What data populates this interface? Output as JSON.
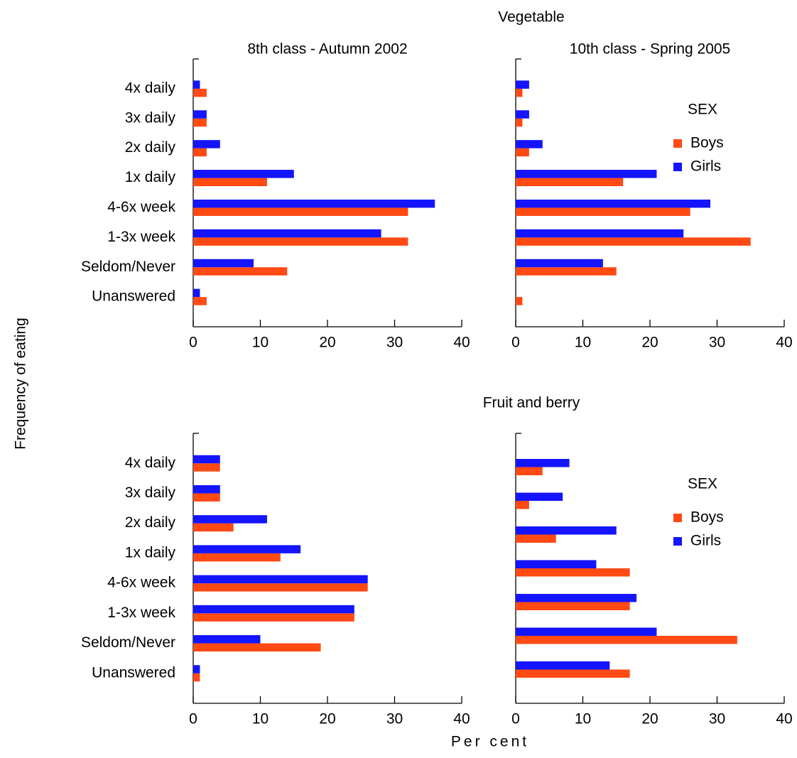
{
  "sections": [
    "Vegetable",
    "Fruit and berry"
  ],
  "ylabel": "Frequency of eating",
  "xlabel": "Per cent",
  "chart_data": [
    {
      "type": "barh",
      "title": "8th class - Autumn 2002",
      "categories": [
        "4x daily",
        "3x daily",
        "2x daily",
        "1x daily",
        "4-6x week",
        "1-3x week",
        "Seldom/Never",
        "Unanswered"
      ],
      "series": [
        {
          "color": "#ff4a14",
          "values": [
            2,
            2,
            2,
            11,
            32,
            32,
            14,
            2
          ]
        },
        {
          "color": "#1414ff",
          "values": [
            1,
            2,
            4,
            15,
            36,
            28,
            9,
            1
          ]
        }
      ],
      "xlim": [
        0,
        40
      ],
      "xticks": [
        0,
        10,
        20,
        30,
        40
      ]
    },
    {
      "type": "barh",
      "title": "10th class - Spring 2005",
      "legend_title": "SEX",
      "legend": "right",
      "series": [
        {
          "name": "Boys",
          "color": "#ff4a14",
          "values": [
            1,
            1,
            2,
            16,
            26,
            35,
            15,
            1
          ]
        },
        {
          "name": "Girls",
          "color": "#1414ff",
          "values": [
            2,
            2,
            4,
            21,
            29,
            25,
            13,
            0
          ]
        }
      ],
      "xlim": [
        0,
        40
      ],
      "xticks": [
        0,
        10,
        20,
        30,
        40
      ]
    },
    {
      "type": "barh",
      "categories": [
        "4x daily",
        "3x daily",
        "2x daily",
        "1x daily",
        "4-6x week",
        "1-3x week",
        "Seldom/Never",
        "Unanswered"
      ],
      "series": [
        {
          "color": "#ff4a14",
          "values": [
            4,
            4,
            6,
            13,
            26,
            24,
            19,
            1
          ]
        },
        {
          "color": "#1414ff",
          "values": [
            4,
            4,
            11,
            16,
            26,
            24,
            10,
            1
          ]
        }
      ],
      "xlim": [
        0,
        40
      ],
      "xticks": [
        0,
        10,
        20,
        30,
        40
      ]
    },
    {
      "type": "barh",
      "legend_title": "SEX",
      "legend": "right",
      "series": [
        {
          "name": "Boys",
          "color": "#ff4a14",
          "values": [
            4,
            2,
            6,
            17,
            17,
            33,
            17
          ]
        },
        {
          "name": "Girls",
          "color": "#1414ff",
          "values": [
            8,
            7,
            15,
            12,
            18,
            21,
            14
          ]
        }
      ],
      "xlim": [
        0,
        40
      ],
      "xticks": [
        0,
        10,
        20,
        30,
        40
      ]
    }
  ]
}
